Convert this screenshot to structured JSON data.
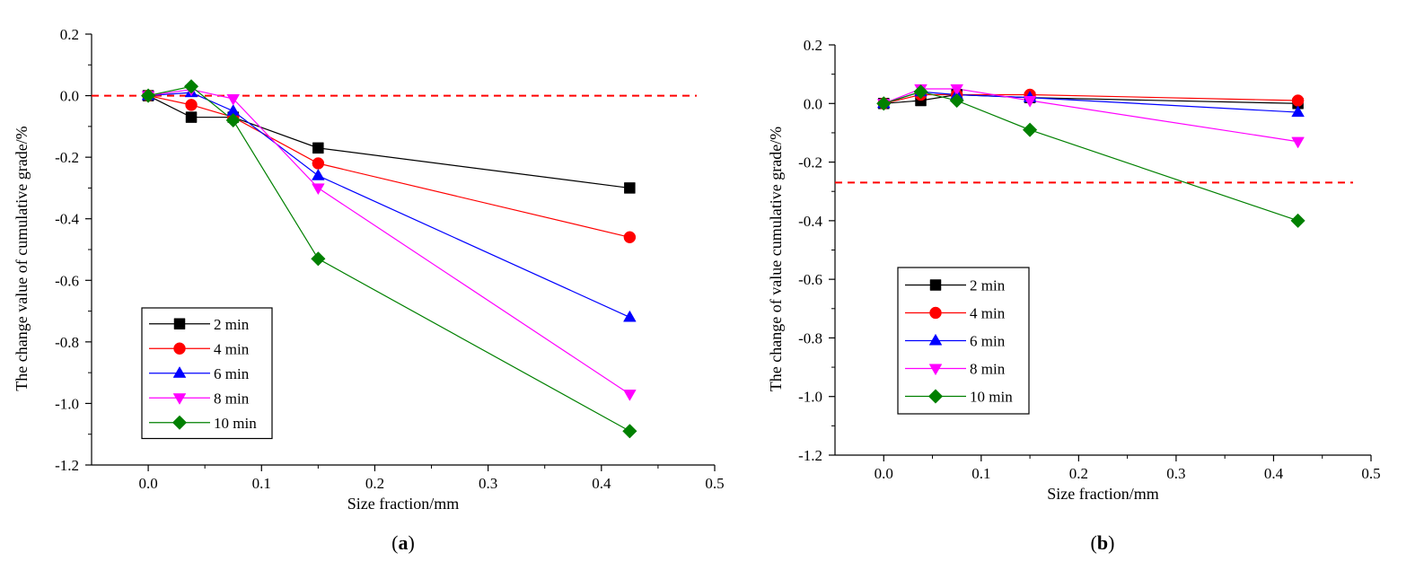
{
  "chart_data": [
    {
      "type": "line",
      "panel_label": "a",
      "title": "",
      "xlabel": "Size fraction/mm",
      "ylabel": "The change value of cumulative grade/%",
      "xlim": [
        -0.05,
        0.5
      ],
      "ylim": [
        -1.2,
        0.2
      ],
      "xticks": [
        0.0,
        0.1,
        0.2,
        0.3,
        0.4,
        0.5
      ],
      "xtick_labels": [
        "0.0",
        "0.1",
        "0.2",
        "0.3",
        "0.4",
        "0.5"
      ],
      "yticks": [
        0.2,
        0.0,
        -0.2,
        -0.4,
        -0.6,
        -0.8,
        -1.0,
        -1.2
      ],
      "ytick_labels": [
        "0.2",
        "0.0",
        "-0.2",
        "-0.4",
        "-0.6",
        "-0.8",
        "-1.0",
        "-1.2"
      ],
      "reference_line": {
        "y": 0.0,
        "color": "#ff0000",
        "style": "dashed"
      },
      "legend_position": "lower-left",
      "series": [
        {
          "name": "2 min",
          "color": "#000000",
          "marker": "square",
          "x": [
            0,
            0.038,
            0.075,
            0.15,
            0.425
          ],
          "y": [
            0,
            -0.07,
            -0.07,
            -0.17,
            -0.3
          ]
        },
        {
          "name": "4 min",
          "color": "#ff0000",
          "marker": "circle",
          "x": [
            0,
            0.038,
            0.075,
            0.15,
            0.425
          ],
          "y": [
            0,
            -0.03,
            -0.07,
            -0.22,
            -0.46
          ]
        },
        {
          "name": "6 min",
          "color": "#0000ff",
          "marker": "triangle-up",
          "x": [
            0,
            0.038,
            0.075,
            0.15,
            0.425
          ],
          "y": [
            0,
            0.01,
            -0.05,
            -0.26,
            -0.72
          ]
        },
        {
          "name": "8 min",
          "color": "#ff00ff",
          "marker": "triangle-down",
          "x": [
            0,
            0.038,
            0.075,
            0.15,
            0.425
          ],
          "y": [
            0,
            0.02,
            -0.01,
            -0.3,
            -0.97
          ]
        },
        {
          "name": "10 min",
          "color": "#008000",
          "marker": "diamond",
          "x": [
            0,
            0.038,
            0.075,
            0.15,
            0.425
          ],
          "y": [
            0,
            0.03,
            -0.08,
            -0.53,
            -1.09
          ]
        }
      ]
    },
    {
      "type": "line",
      "panel_label": "b",
      "title": "",
      "xlabel": "Size fraction/mm",
      "ylabel": "The change of value cumulative grade/%",
      "xlim": [
        -0.05,
        0.5
      ],
      "ylim": [
        -1.2,
        0.2
      ],
      "xticks": [
        0.0,
        0.1,
        0.2,
        0.3,
        0.4,
        0.5
      ],
      "xtick_labels": [
        "0.0",
        "0.1",
        "0.2",
        "0.3",
        "0.4",
        "0.5"
      ],
      "yticks": [
        0.2,
        0.0,
        -0.2,
        -0.4,
        -0.6,
        -0.8,
        -1.0,
        -1.2
      ],
      "ytick_labels": [
        "0.2",
        "0.0",
        "-0.2",
        "-0.4",
        "-0.6",
        "-0.8",
        "-1.0",
        "-1.2"
      ],
      "reference_line": {
        "y": -0.27,
        "color": "#ff0000",
        "style": "dashed"
      },
      "legend_position": "middle-left",
      "series": [
        {
          "name": "2 min",
          "color": "#000000",
          "marker": "square",
          "x": [
            0,
            0.038,
            0.075,
            0.15,
            0.425
          ],
          "y": [
            0,
            0.01,
            0.03,
            0.02,
            0.0
          ]
        },
        {
          "name": "4 min",
          "color": "#ff0000",
          "marker": "circle",
          "x": [
            0,
            0.038,
            0.075,
            0.15,
            0.425
          ],
          "y": [
            0,
            0.03,
            0.03,
            0.03,
            0.01
          ]
        },
        {
          "name": "6 min",
          "color": "#0000ff",
          "marker": "triangle-up",
          "x": [
            0,
            0.038,
            0.075,
            0.15,
            0.425
          ],
          "y": [
            0,
            0.04,
            0.03,
            0.02,
            -0.03
          ]
        },
        {
          "name": "8 min",
          "color": "#ff00ff",
          "marker": "triangle-down",
          "x": [
            0,
            0.038,
            0.075,
            0.15,
            0.425
          ],
          "y": [
            0,
            0.05,
            0.05,
            0.01,
            -0.13
          ]
        },
        {
          "name": "10 min",
          "color": "#008000",
          "marker": "diamond",
          "x": [
            0,
            0.038,
            0.075,
            0.15,
            0.425
          ],
          "y": [
            0,
            0.04,
            0.01,
            -0.09,
            -0.4
          ]
        }
      ]
    }
  ]
}
